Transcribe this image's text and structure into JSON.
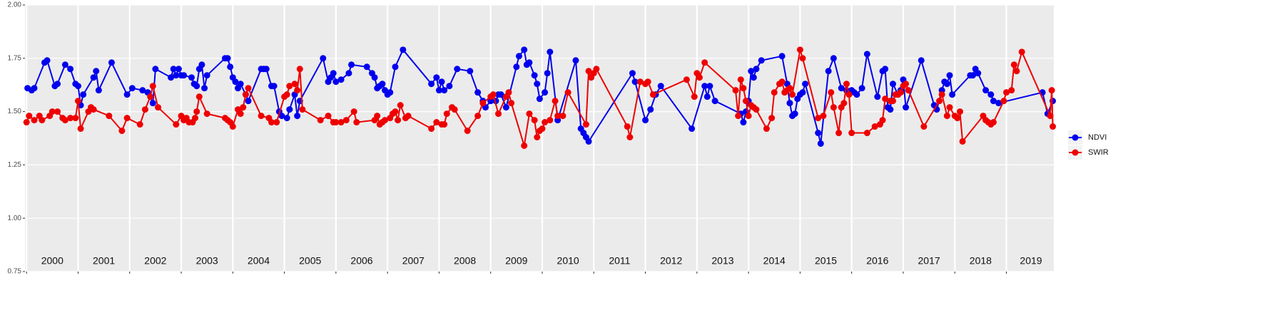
{
  "chart_data": {
    "type": "line",
    "xlim": [
      1999.97,
      2019.92
    ],
    "xticks": [
      2000,
      2001,
      2002,
      2003,
      2004,
      2005,
      2006,
      2007,
      2008,
      2009,
      2010,
      2011,
      2012,
      2013,
      2014,
      2015,
      2016,
      2017,
      2018,
      2019
    ],
    "ylim": [
      0.75,
      2.0
    ],
    "yticks": [
      0.75,
      {
        "value": 1.0,
        "label": "1.00"
      },
      1.25,
      {
        "value": 1.5,
        "label": "1.50"
      },
      1.75,
      {
        "value": 2.0,
        "label": "2.00"
      }
    ],
    "grid": true,
    "legend": "right",
    "series": [
      {
        "name": "NDVI",
        "color": "#0000ee",
        "x": [
          2000.02,
          2000.1,
          2000.15,
          2000.35,
          2000.4,
          2000.55,
          2000.6,
          2000.75,
          2000.85,
          2000.95,
          2001.0,
          2001.05,
          2001.1,
          2001.3,
          2001.35,
          2001.4,
          2001.65,
          2001.95,
          2002.05,
          2002.25,
          2002.35,
          2002.45,
          2002.5,
          2002.8,
          2002.85,
          2002.9,
          2002.95,
          2003.0,
          2003.05,
          2003.2,
          2003.25,
          2003.3,
          2003.35,
          2003.4,
          2003.45,
          2003.5,
          2003.85,
          2003.9,
          2003.95,
          2004.0,
          2004.05,
          2004.1,
          2004.15,
          2004.25,
          2004.3,
          2004.55,
          2004.6,
          2004.65,
          2004.75,
          2004.8,
          2004.9,
          2004.95,
          2005.05,
          2005.1,
          2005.2,
          2005.25,
          2005.3,
          2005.75,
          2005.85,
          2005.9,
          2005.95,
          2006.0,
          2006.1,
          2006.25,
          2006.3,
          2006.6,
          2006.7,
          2006.75,
          2006.8,
          2006.85,
          2006.9,
          2006.95,
          2007.0,
          2007.05,
          2007.15,
          2007.3,
          2007.85,
          2007.95,
          2008.0,
          2008.05,
          2008.1,
          2008.2,
          2008.35,
          2008.6,
          2008.75,
          2008.85,
          2008.9,
          2009.0,
          2009.1,
          2009.15,
          2009.2,
          2009.3,
          2009.5,
          2009.55,
          2009.65,
          2009.7,
          2009.75,
          2009.85,
          2009.9,
          2009.95,
          2010.05,
          2010.1,
          2010.15,
          2010.3,
          2010.65,
          2010.75,
          2010.8,
          2010.85,
          2010.9,
          2011.75,
          2011.8,
          2012.0,
          2012.1,
          2012.2,
          2012.3,
          2012.9,
          2013.15,
          2013.2,
          2013.25,
          2013.35,
          2013.85,
          2013.9,
          2013.95,
          2014.0,
          2014.05,
          2014.1,
          2014.15,
          2014.25,
          2014.65,
          2014.75,
          2014.8,
          2014.85,
          2014.9,
          2014.95,
          2015.0,
          2015.05,
          2015.1,
          2015.35,
          2015.4,
          2015.55,
          2015.65,
          2015.8,
          2015.9,
          2016.0,
          2016.05,
          2016.1,
          2016.2,
          2016.3,
          2016.5,
          2016.6,
          2016.65,
          2016.7,
          2016.75,
          2016.8,
          2016.9,
          2016.95,
          2017.0,
          2017.05,
          2017.35,
          2017.6,
          2017.65,
          2017.75,
          2017.8,
          2017.85,
          2017.9,
          2017.95,
          2018.3,
          2018.35,
          2018.4,
          2018.45,
          2018.6,
          2018.7,
          2018.75,
          2018.85,
          2019.7,
          2019.8,
          2019.9
        ],
        "values": [
          1.61,
          1.6,
          1.61,
          1.73,
          1.74,
          1.62,
          1.63,
          1.72,
          1.7,
          1.63,
          1.62,
          1.53,
          1.58,
          1.66,
          1.69,
          1.6,
          1.73,
          1.58,
          1.61,
          1.6,
          1.59,
          1.54,
          1.7,
          1.66,
          1.7,
          1.67,
          1.7,
          1.67,
          1.67,
          1.66,
          1.63,
          1.62,
          1.7,
          1.72,
          1.61,
          1.67,
          1.75,
          1.75,
          1.71,
          1.66,
          1.64,
          1.61,
          1.63,
          1.58,
          1.55,
          1.7,
          1.7,
          1.7,
          1.62,
          1.62,
          1.5,
          1.48,
          1.47,
          1.51,
          1.58,
          1.48,
          1.55,
          1.75,
          1.64,
          1.66,
          1.68,
          1.64,
          1.65,
          1.68,
          1.72,
          1.71,
          1.68,
          1.66,
          1.61,
          1.62,
          1.63,
          1.6,
          1.58,
          1.59,
          1.71,
          1.79,
          1.63,
          1.66,
          1.6,
          1.64,
          1.6,
          1.62,
          1.7,
          1.69,
          1.59,
          1.55,
          1.52,
          1.55,
          1.55,
          1.58,
          1.58,
          1.52,
          1.71,
          1.76,
          1.79,
          1.72,
          1.73,
          1.67,
          1.63,
          1.56,
          1.59,
          1.68,
          1.78,
          1.46,
          1.74,
          1.42,
          1.4,
          1.38,
          1.36,
          1.68,
          1.64,
          1.46,
          1.51,
          1.58,
          1.62,
          1.42,
          1.62,
          1.57,
          1.62,
          1.55,
          1.49,
          1.45,
          1.5,
          1.55,
          1.69,
          1.66,
          1.7,
          1.74,
          1.76,
          1.63,
          1.54,
          1.48,
          1.49,
          1.56,
          1.58,
          1.59,
          1.63,
          1.4,
          1.35,
          1.69,
          1.75,
          1.61,
          1.6,
          1.6,
          1.59,
          1.58,
          1.61,
          1.77,
          1.57,
          1.69,
          1.7,
          1.52,
          1.51,
          1.63,
          1.58,
          1.6,
          1.65,
          1.52,
          1.74,
          1.53,
          1.51,
          1.6,
          1.64,
          1.63,
          1.67,
          1.58,
          1.67,
          1.67,
          1.7,
          1.68,
          1.6,
          1.58,
          1.55,
          1.54,
          1.59,
          1.49,
          1.55
        ]
      },
      {
        "name": "SWIR",
        "color": "#ee0000",
        "x": [
          2000.0,
          2000.05,
          2000.15,
          2000.25,
          2000.3,
          2000.45,
          2000.5,
          2000.6,
          2000.7,
          2000.75,
          2000.85,
          2000.95,
          2001.0,
          2001.05,
          2001.2,
          2001.25,
          2001.3,
          2001.6,
          2001.85,
          2001.95,
          2002.2,
          2002.3,
          2002.4,
          2002.45,
          2002.55,
          2002.9,
          2003.0,
          2003.05,
          2003.1,
          2003.15,
          2003.22,
          2003.27,
          2003.3,
          2003.35,
          2003.5,
          2003.85,
          2003.9,
          2003.95,
          2004.0,
          2004.1,
          2004.15,
          2004.2,
          2004.25,
          2004.3,
          2004.55,
          2004.7,
          2004.75,
          2004.85,
          2005.0,
          2005.05,
          2005.1,
          2005.2,
          2005.25,
          2005.3,
          2005.35,
          2005.7,
          2005.85,
          2005.95,
          2006.0,
          2006.1,
          2006.2,
          2006.35,
          2006.4,
          2006.75,
          2006.8,
          2006.85,
          2006.9,
          2006.95,
          2007.05,
          2007.1,
          2007.15,
          2007.2,
          2007.25,
          2007.35,
          2007.4,
          2007.85,
          2007.95,
          2008.05,
          2008.1,
          2008.15,
          2008.25,
          2008.3,
          2008.55,
          2008.75,
          2008.85,
          2009.0,
          2009.05,
          2009.15,
          2009.3,
          2009.35,
          2009.4,
          2009.65,
          2009.75,
          2009.85,
          2009.9,
          2009.95,
          2010.0,
          2010.05,
          2010.15,
          2010.25,
          2010.3,
          2010.4,
          2010.5,
          2010.85,
          2010.9,
          2010.95,
          2011.0,
          2011.05,
          2011.65,
          2011.7,
          2011.9,
          2012.0,
          2012.05,
          2012.15,
          2012.8,
          2012.95,
          2013.0,
          2013.05,
          2013.15,
          2013.75,
          2013.8,
          2013.85,
          2013.9,
          2013.95,
          2014.0,
          2014.05,
          2014.1,
          2014.15,
          2014.35,
          2014.45,
          2014.5,
          2014.6,
          2014.65,
          2014.7,
          2014.75,
          2014.8,
          2014.85,
          2015.0,
          2015.05,
          2015.35,
          2015.45,
          2015.6,
          2015.65,
          2015.75,
          2015.8,
          2015.85,
          2015.9,
          2015.95,
          2016.0,
          2016.3,
          2016.45,
          2016.55,
          2016.6,
          2016.65,
          2016.75,
          2016.8,
          2016.85,
          2016.9,
          2016.95,
          2017.0,
          2017.05,
          2017.1,
          2017.4,
          2017.7,
          2017.75,
          2017.85,
          2017.9,
          2018.0,
          2018.05,
          2018.1,
          2018.15,
          2018.55,
          2018.6,
          2018.65,
          2018.7,
          2018.75,
          2018.95,
          2019.0,
          2019.1,
          2019.15,
          2019.2,
          2019.3,
          2019.85,
          2019.88,
          2019.9
        ],
        "values": [
          1.45,
          1.48,
          1.46,
          1.48,
          1.46,
          1.48,
          1.5,
          1.5,
          1.47,
          1.46,
          1.47,
          1.47,
          1.55,
          1.42,
          1.5,
          1.52,
          1.51,
          1.48,
          1.41,
          1.47,
          1.44,
          1.51,
          1.57,
          1.62,
          1.52,
          1.44,
          1.48,
          1.46,
          1.47,
          1.45,
          1.45,
          1.47,
          1.5,
          1.57,
          1.49,
          1.47,
          1.46,
          1.45,
          1.43,
          1.51,
          1.49,
          1.52,
          1.58,
          1.61,
          1.48,
          1.47,
          1.45,
          1.45,
          1.57,
          1.58,
          1.62,
          1.63,
          1.6,
          1.7,
          1.51,
          1.46,
          1.48,
          1.45,
          1.45,
          1.45,
          1.46,
          1.5,
          1.45,
          1.46,
          1.48,
          1.44,
          1.45,
          1.46,
          1.47,
          1.49,
          1.5,
          1.46,
          1.53,
          1.47,
          1.48,
          1.42,
          1.45,
          1.44,
          1.44,
          1.49,
          1.52,
          1.51,
          1.41,
          1.48,
          1.54,
          1.57,
          1.58,
          1.49,
          1.57,
          1.59,
          1.54,
          1.34,
          1.49,
          1.46,
          1.38,
          1.41,
          1.42,
          1.45,
          1.46,
          1.55,
          1.48,
          1.48,
          1.59,
          1.44,
          1.69,
          1.66,
          1.68,
          1.7,
          1.43,
          1.38,
          1.64,
          1.63,
          1.64,
          1.58,
          1.65,
          1.57,
          1.68,
          1.66,
          1.73,
          1.6,
          1.48,
          1.65,
          1.61,
          1.55,
          1.48,
          1.53,
          1.52,
          1.51,
          1.42,
          1.47,
          1.59,
          1.63,
          1.64,
          1.59,
          1.6,
          1.61,
          1.58,
          1.79,
          1.75,
          1.47,
          1.48,
          1.59,
          1.52,
          1.4,
          1.52,
          1.54,
          1.63,
          1.58,
          1.4,
          1.4,
          1.43,
          1.44,
          1.46,
          1.56,
          1.55,
          1.55,
          1.58,
          1.58,
          1.59,
          1.62,
          1.63,
          1.6,
          1.43,
          1.55,
          1.58,
          1.48,
          1.52,
          1.48,
          1.47,
          1.5,
          1.36,
          1.48,
          1.46,
          1.45,
          1.44,
          1.45,
          1.55,
          1.59,
          1.6,
          1.72,
          1.69,
          1.78,
          1.48,
          1.6,
          1.43
        ]
      }
    ]
  }
}
